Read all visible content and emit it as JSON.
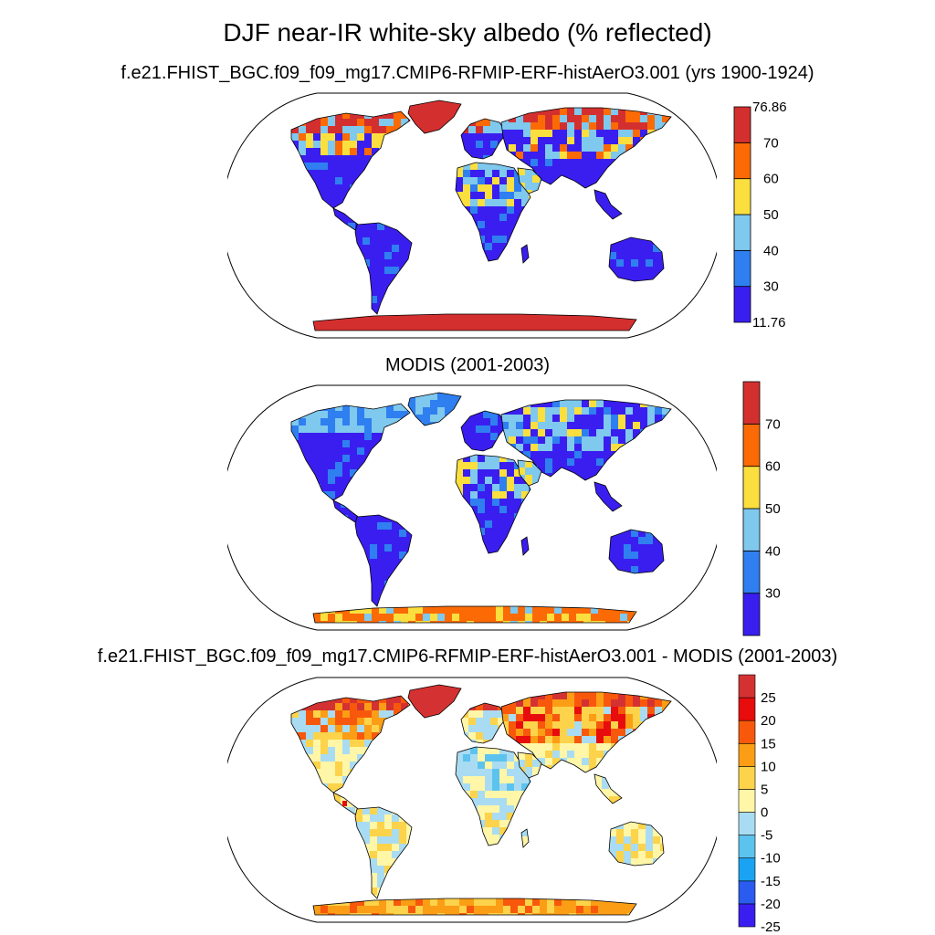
{
  "figure": {
    "title": "DJF near-IR white-sky albedo (% reflected)"
  },
  "panels": [
    {
      "id": "model",
      "title": "f.e21.FHIST_BGC.f09_f09_mg17.CMIP6-RFMIP-ERF-histAerO3.001 (yrs 1900-1924)",
      "colorbar": {
        "colors": [
          "#3a1ef0",
          "#2f7ff0",
          "#7fc8ee",
          "#fbdf3e",
          "#fb6a05",
          "#d42f2f"
        ],
        "labels": [
          "11.76",
          "30",
          "40",
          "50",
          "60",
          "70",
          "76.86"
        ]
      }
    },
    {
      "id": "obs",
      "title": "MODIS (2001-2003)",
      "colorbar": {
        "colors": [
          "#3a1ef0",
          "#2f7ff0",
          "#7fc8ee",
          "#fbdf3e",
          "#fb6a05",
          "#d42f2f"
        ],
        "labels": [
          "30",
          "40",
          "50",
          "60",
          "70"
        ]
      }
    },
    {
      "id": "diff",
      "title": "f.e21.FHIST_BGC.f09_f09_mg17.CMIP6-RFMIP-ERF-histAerO3.001 - MODIS (2001-2003)",
      "colorbar": {
        "colors": [
          "#3a1ef0",
          "#2b5cf0",
          "#1aa3f2",
          "#5cc3ef",
          "#a9dcf2",
          "#fff6a8",
          "#fcd34a",
          "#fb9e16",
          "#f8580c",
          "#e80c0c",
          "#d43232"
        ],
        "labels": [
          "25",
          "20",
          "15",
          "10",
          "5",
          "0",
          "-5",
          "-10",
          "-15",
          "-20",
          "-25"
        ]
      }
    }
  ],
  "chart_data": [
    {
      "type": "heatmap",
      "title": "f.e21.FHIST_BGC.f09_f09_mg17.CMIP6-RFMIP-ERF-histAerO3.001 (yrs 1900-1924)",
      "variable": "DJF near-IR white-sky albedo (% reflected)",
      "projection": "Robinson",
      "range": [
        11.76,
        76.86
      ],
      "levels": [
        30,
        40,
        50,
        60,
        70
      ],
      "regions": {
        "Antarctica": "70+",
        "Greenland": "70+",
        "Siberia/Arctic": "60-76",
        "Sahara": "30-60",
        "Amazon": "11.76-30",
        "Australia": "11.76-40"
      }
    },
    {
      "type": "heatmap",
      "title": "MODIS (2001-2003)",
      "variable": "DJF near-IR white-sky albedo (% reflected)",
      "projection": "Robinson",
      "levels": [
        30,
        40,
        50,
        60,
        70
      ],
      "regions": {
        "Antarctica": "50-70",
        "Siberia": "40-60",
        "Sahara": "30-60",
        "Amazon": "<30",
        "Australia": "<40"
      }
    },
    {
      "type": "heatmap",
      "title": "f.e21.FHIST_BGC.f09_f09_mg17.CMIP6-RFMIP-ERF-histAerO3.001 - MODIS (2001-2003)",
      "variable": "difference (% reflected)",
      "projection": "Robinson",
      "levels": [
        -25,
        -20,
        -15,
        -10,
        -5,
        0,
        5,
        10,
        15,
        20,
        25
      ],
      "regions": {
        "Greenland/Arctic": "20-25+",
        "Siberia": "5-20",
        "Tropics": "-5 to 5",
        "Antarctica": "5-15"
      }
    }
  ]
}
